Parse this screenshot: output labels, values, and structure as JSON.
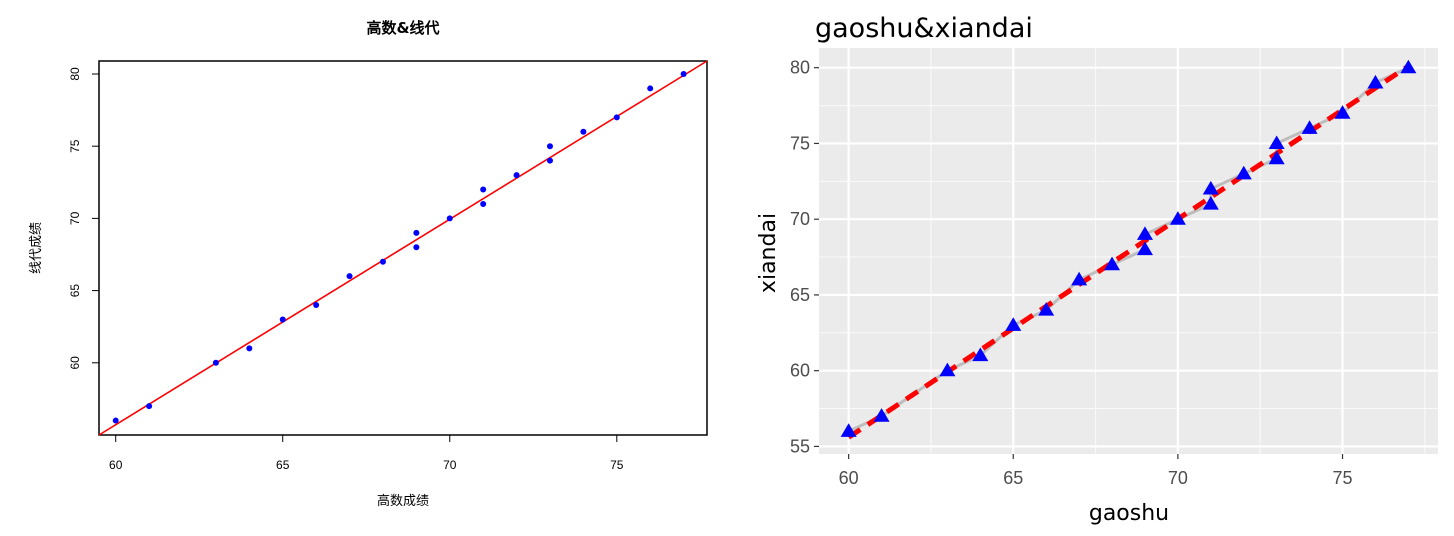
{
  "chart_data": [
    {
      "type": "scatter",
      "style": "base-r",
      "title": "高数&线代",
      "xlabel": "高数成绩",
      "ylabel": "线代成绩",
      "xlim": [
        59.5,
        77.7
      ],
      "ylim": [
        55,
        80.9
      ],
      "xticks": [
        60,
        65,
        70,
        75
      ],
      "yticks": [
        60,
        65,
        70,
        75,
        80
      ],
      "point_color": "#0000ff",
      "line_color": "#ff0000",
      "fit_line": {
        "x": [
          59.5,
          77.7
        ],
        "y": [
          55,
          80.9
        ]
      },
      "points": [
        {
          "x": 60,
          "y": 56
        },
        {
          "x": 61,
          "y": 57
        },
        {
          "x": 63,
          "y": 60
        },
        {
          "x": 64,
          "y": 61
        },
        {
          "x": 65,
          "y": 63
        },
        {
          "x": 66,
          "y": 64
        },
        {
          "x": 67,
          "y": 66
        },
        {
          "x": 68,
          "y": 67
        },
        {
          "x": 69,
          "y": 68
        },
        {
          "x": 69,
          "y": 69
        },
        {
          "x": 70,
          "y": 70
        },
        {
          "x": 71,
          "y": 71
        },
        {
          "x": 71,
          "y": 72
        },
        {
          "x": 72,
          "y": 73
        },
        {
          "x": 73,
          "y": 74
        },
        {
          "x": 73,
          "y": 75
        },
        {
          "x": 74,
          "y": 76
        },
        {
          "x": 75,
          "y": 77
        },
        {
          "x": 76,
          "y": 79
        },
        {
          "x": 77,
          "y": 80
        }
      ]
    },
    {
      "type": "scatter",
      "style": "ggplot2",
      "title": "gaoshu&xiandai",
      "xlabel": "gaoshu",
      "ylabel": "xiandai",
      "xlim": [
        59.1,
        77.9
      ],
      "ylim": [
        54.5,
        81.3
      ],
      "xticks": [
        60,
        65,
        70,
        75
      ],
      "yticks": [
        55,
        60,
        65,
        70,
        75,
        80
      ],
      "grid": true,
      "panel_color": "#ebebeb",
      "point_color": "#0000ff",
      "point_shape": "triangle",
      "line_color": "#ff0000",
      "line_style": "dashed",
      "smooth_color": "#bdbdbd",
      "fit_line": {
        "x": [
          60,
          77
        ],
        "y": [
          55.6,
          80.1
        ]
      },
      "points": [
        {
          "x": 60,
          "y": 56
        },
        {
          "x": 61,
          "y": 57
        },
        {
          "x": 63,
          "y": 60
        },
        {
          "x": 64,
          "y": 61
        },
        {
          "x": 65,
          "y": 63
        },
        {
          "x": 66,
          "y": 64
        },
        {
          "x": 67,
          "y": 66
        },
        {
          "x": 68,
          "y": 67
        },
        {
          "x": 69,
          "y": 68
        },
        {
          "x": 69,
          "y": 69
        },
        {
          "x": 70,
          "y": 70
        },
        {
          "x": 71,
          "y": 71
        },
        {
          "x": 71,
          "y": 72
        },
        {
          "x": 72,
          "y": 73
        },
        {
          "x": 73,
          "y": 74
        },
        {
          "x": 73,
          "y": 75
        },
        {
          "x": 74,
          "y": 76
        },
        {
          "x": 75,
          "y": 77
        },
        {
          "x": 76,
          "y": 79
        },
        {
          "x": 77,
          "y": 80
        }
      ]
    }
  ]
}
